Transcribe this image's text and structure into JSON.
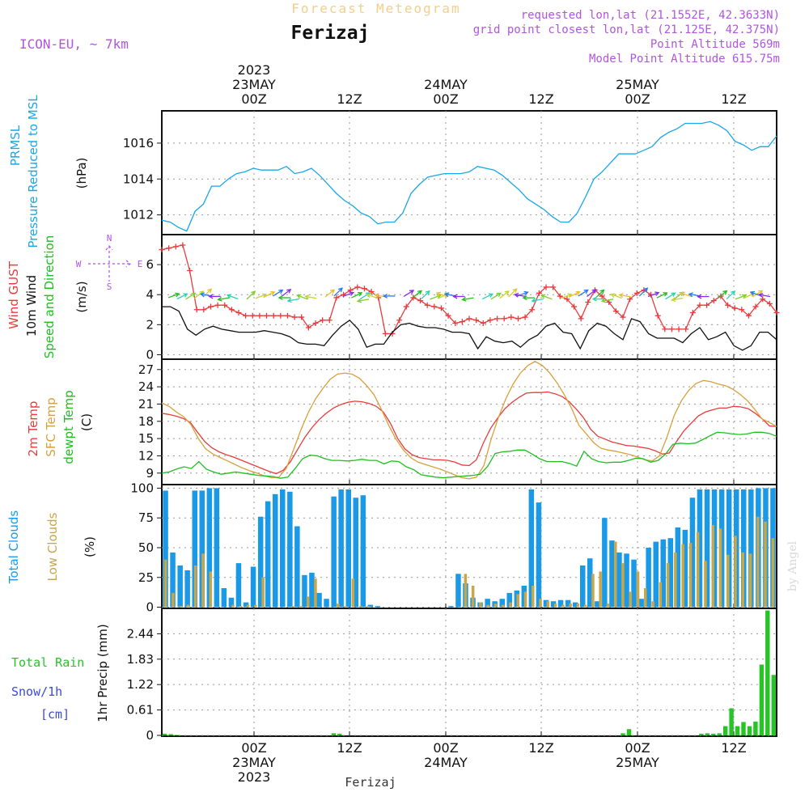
{
  "header": {
    "title": "Forecast Meteogram",
    "location": "Ferizaj",
    "model": "ICON-EU, ~ 7km",
    "requested": "requested lon,lat (21.1552E, 42.3633N)",
    "gridpoint": "grid point closest lon,lat (21.125E, 42.375N)",
    "point_alt": "Point Altitude 569m",
    "model_alt": "Model Point Altitude 615.75m",
    "footer_location": "Ferizaj",
    "watermark": "by Angel"
  },
  "colors": {
    "pressure": "#1aa6e8",
    "gust": "#e83c3c",
    "wind": "#111111",
    "direction": "#1fbf1f",
    "temp": "#e83c3c",
    "sfc": "#d9a03a",
    "dewpt": "#1fbf1f",
    "total_clouds": "#1a9ae6",
    "low_clouds": "#c8a64a",
    "rain": "#26c426",
    "snow": "#3a4ad9",
    "rose": "#b055e0"
  },
  "chart_data": [
    {
      "type": "line",
      "title": "PRMSL",
      "ylabel": "Pressure Reduced to MSL",
      "unit": "(hPa)",
      "ylim": [
        1010.9,
        1017.8
      ],
      "yticks": [
        1012,
        1014,
        1016
      ],
      "ytick_labels": [
        "1012",
        "1014",
        "1016"
      ],
      "grid": true,
      "series": [
        {
          "key": "pressure",
          "values": [
            1011.7,
            1011.6,
            1011.3,
            1011.1,
            1012.2,
            1012.6,
            1013.6,
            1013.6,
            1014.0,
            1014.3,
            1014.4,
            1014.6,
            1014.5,
            1014.5,
            1014.5,
            1014.7,
            1014.3,
            1014.4,
            1014.6,
            1014.2,
            1013.7,
            1013.2,
            1012.8,
            1012.5,
            1012.1,
            1011.9,
            1011.5,
            1011.6,
            1011.6,
            1012.1,
            1013.2,
            1013.7,
            1014.1,
            1014.2,
            1014.3,
            1014.3,
            1014.3,
            1014.4,
            1014.7,
            1014.6,
            1014.5,
            1014.2,
            1013.8,
            1013.4,
            1012.9,
            1012.6,
            1012.3,
            1011.9,
            1011.6,
            1011.6,
            1012.1,
            1013.0,
            1014.0,
            1014.4,
            1014.9,
            1015.4,
            1015.4,
            1015.4,
            1015.6,
            1015.8,
            1016.3,
            1016.6,
            1016.8,
            1017.1,
            1017.1,
            1017.1,
            1017.2,
            1017.0,
            1016.7,
            1016.1,
            1015.9,
            1015.6,
            1015.8,
            1015.8,
            1016.4
          ]
        }
      ]
    },
    {
      "type": "line",
      "title": "Wind GUST",
      "ylabel": "10m Wind Speed and Direction",
      "unit": "(m/s)",
      "ylim": [
        -0.3,
        8.0
      ],
      "yticks": [
        0,
        2,
        4,
        6
      ],
      "ytick_labels": [
        "0",
        "2",
        "4",
        "6"
      ],
      "grid": true,
      "series": [
        {
          "key": "gust",
          "name": "Wind GUST",
          "values": [
            7.0,
            7.1,
            7.2,
            7.3,
            5.6,
            3.0,
            3.0,
            3.2,
            3.3,
            3.3,
            3.0,
            2.8,
            2.6,
            2.6,
            2.6,
            2.6,
            2.6,
            2.6,
            2.6,
            2.5,
            2.5,
            1.8,
            2.1,
            2.3,
            2.3,
            3.8,
            4.0,
            4.3,
            4.5,
            4.4,
            4.2,
            3.8,
            1.4,
            1.4,
            2.3,
            3.2,
            3.8,
            3.6,
            3.3,
            3.2,
            3.1,
            2.6,
            2.1,
            2.2,
            2.4,
            2.3,
            2.1,
            2.3,
            2.4,
            2.4,
            2.5,
            2.4,
            2.5,
            3.0,
            4.1,
            4.5,
            4.5,
            3.9,
            3.7,
            3.2,
            2.4,
            3.5,
            4.3,
            3.9,
            3.5,
            2.9,
            2.5,
            3.7,
            4.1,
            4.3,
            4.0,
            2.6,
            1.7,
            1.7,
            1.7,
            1.7,
            2.8,
            3.3,
            3.3,
            3.6,
            3.9,
            3.3,
            3.1,
            3.0,
            2.6,
            3.2,
            3.7,
            3.4,
            2.8
          ]
        },
        {
          "key": "wind",
          "name": "10m Wind",
          "values": [
            3.2,
            3.2,
            2.9,
            1.7,
            1.3,
            1.7,
            1.9,
            1.7,
            1.6,
            1.5,
            1.5,
            1.5,
            1.6,
            1.5,
            1.4,
            1.2,
            0.8,
            0.7,
            0.7,
            0.6,
            1.3,
            1.9,
            2.3,
            1.7,
            0.5,
            0.7,
            0.7,
            1.5,
            2.0,
            2.1,
            1.9,
            1.8,
            1.8,
            1.7,
            1.5,
            1.5,
            1.4,
            0.4,
            1.2,
            0.9,
            0.8,
            0.9,
            0.5,
            1.0,
            1.3,
            1.9,
            2.1,
            1.5,
            1.4,
            0.4,
            1.6,
            2.1,
            1.9,
            1.4,
            1.0,
            2.4,
            2.2,
            1.4,
            1.1,
            1.1,
            1.1,
            0.8,
            1.4,
            1.8,
            1.0,
            1.2,
            1.5,
            0.6,
            0.3,
            0.6,
            1.5,
            1.5,
            1.0
          ]
        },
        {
          "key": "direction",
          "name": "Speed and Direction",
          "values": []
        }
      ]
    },
    {
      "type": "line",
      "title": "2m Temp",
      "ylabel": "SFC Temp dewpt Temp",
      "unit": "(C)",
      "ylim": [
        7.0,
        28.8
      ],
      "yticks": [
        9,
        12,
        15,
        18,
        21,
        24,
        27
      ],
      "ytick_labels": [
        "9",
        "12",
        "15",
        "18",
        "21",
        "24",
        "27"
      ],
      "grid": true,
      "series": [
        {
          "key": "temp",
          "name": "2m Temp",
          "values": [
            19.4,
            19.2,
            18.9,
            18.5,
            17.8,
            16.1,
            14.5,
            13.4,
            12.7,
            12.2,
            11.8,
            11.3,
            10.8,
            10.3,
            9.8,
            9.3,
            8.9,
            9.5,
            11.0,
            13.1,
            15.2,
            16.9,
            18.3,
            19.4,
            20.3,
            20.9,
            21.3,
            21.5,
            21.4,
            21.1,
            20.6,
            19.6,
            17.6,
            15.0,
            13.2,
            12.2,
            11.7,
            11.5,
            11.3,
            11.3,
            11.2,
            10.9,
            10.4,
            10.3,
            11.3,
            14.3,
            16.8,
            18.6,
            20.2,
            21.3,
            22.2,
            22.9,
            23.0,
            23.0,
            23.1,
            22.8,
            22.3,
            21.4,
            20.1,
            18.6,
            16.6,
            15.4,
            14.9,
            14.4,
            14.1,
            13.8,
            13.7,
            13.5,
            13.3,
            12.9,
            12.3,
            12.5,
            14.5,
            16.3,
            17.6,
            18.9,
            19.6,
            20.0,
            20.3,
            20.3,
            20.6,
            20.5,
            20.2,
            19.4,
            18.4,
            17.2,
            17.1
          ]
        },
        {
          "key": "sfc",
          "name": "SFC Temp",
          "values": [
            21.2,
            20.6,
            19.6,
            18.8,
            17.4,
            15.0,
            13.2,
            12.3,
            11.7,
            11.1,
            10.5,
            9.9,
            9.4,
            9.0,
            8.5,
            8.2,
            8.3,
            9.8,
            13.1,
            16.5,
            19.5,
            21.9,
            23.7,
            25.3,
            26.2,
            26.4,
            26.2,
            25.5,
            24.2,
            22.6,
            20.1,
            17.3,
            14.9,
            13.0,
            11.7,
            10.9,
            10.5,
            10.1,
            9.7,
            9.2,
            8.7,
            8.2,
            8.0,
            8.3,
            10.3,
            14.9,
            18.7,
            21.9,
            24.5,
            26.4,
            27.7,
            28.4,
            27.7,
            26.4,
            24.7,
            22.6,
            20.2,
            17.3,
            15.8,
            14.3,
            13.3,
            13.0,
            12.8,
            12.5,
            12.2,
            11.8,
            11.3,
            11.1,
            12.0,
            15.2,
            19.0,
            21.6,
            23.4,
            24.6,
            25.1,
            24.9,
            24.5,
            24.2,
            23.6,
            22.7,
            21.6,
            20.1,
            18.4,
            17.8,
            17.1
          ]
        },
        {
          "key": "dewpt",
          "name": "dewpt Temp",
          "values": [
            9.0,
            9.2,
            9.7,
            10.1,
            9.8,
            11.0,
            9.7,
            9.2,
            8.8,
            9.0,
            9.2,
            9.0,
            8.8,
            8.6,
            8.5,
            8.4,
            8.1,
            8.3,
            9.8,
            11.5,
            12.1,
            12.0,
            11.5,
            11.2,
            11.2,
            11.1,
            11.2,
            11.4,
            11.2,
            11.2,
            10.6,
            11.1,
            11.0,
            10.1,
            9.6,
            8.7,
            8.5,
            8.3,
            8.2,
            8.3,
            8.4,
            8.5,
            8.6,
            8.8,
            10.2,
            12.4,
            12.7,
            12.8,
            13.0,
            13.0,
            12.3,
            11.5,
            11.0,
            11.0,
            11.0,
            10.7,
            10.2,
            12.8,
            11.5,
            11.0,
            10.8,
            10.9,
            10.9,
            11.2,
            11.6,
            11.5,
            10.9,
            11.2,
            12.3,
            14.0,
            14.2,
            14.1,
            14.2,
            14.8,
            15.5,
            16.1,
            16.0,
            15.8,
            15.7,
            15.8,
            16.1,
            16.1,
            15.9,
            15.4
          ]
        }
      ]
    },
    {
      "type": "bar",
      "title": "Total Clouds",
      "ylabel": "Low Clouds",
      "unit": "(%)",
      "ylim": [
        -1,
        103
      ],
      "yticks": [
        0,
        25,
        50,
        75,
        100
      ],
      "ytick_labels": [
        "0",
        "25",
        "50",
        "75",
        "100"
      ],
      "grid": true,
      "series": [
        {
          "key": "total_clouds",
          "name": "Total Clouds",
          "values": [
            98,
            46,
            35,
            31,
            98,
            98,
            100,
            100,
            16,
            8,
            37,
            4,
            34,
            76,
            89,
            95,
            99,
            97,
            68,
            27,
            29,
            12,
            7,
            93,
            99,
            99,
            92,
            94,
            2,
            1,
            0,
            0,
            0,
            0,
            0,
            0,
            0,
            0,
            0,
            1,
            28,
            20,
            8,
            4,
            7,
            5,
            7,
            12,
            14,
            18,
            99,
            88,
            6,
            5,
            6,
            6,
            4,
            35,
            41,
            5,
            75,
            56,
            46,
            45,
            40,
            7,
            50,
            55,
            57,
            58,
            67,
            65,
            92,
            99,
            99,
            99,
            99,
            99,
            99,
            99,
            99,
            100,
            100,
            100
          ]
        },
        {
          "key": "low_clouds",
          "name": "Low Clouds",
          "values": [
            40,
            12,
            1,
            2,
            35,
            45,
            30,
            0,
            0,
            2,
            1,
            2,
            2,
            25,
            0,
            0,
            0,
            1,
            1,
            9,
            24,
            0,
            0,
            3,
            1,
            24,
            1,
            1,
            0,
            0,
            0,
            0,
            0,
            0,
            0,
            0,
            0,
            0,
            0,
            0,
            28,
            18,
            4,
            2,
            3,
            2,
            4,
            11,
            13,
            18,
            7,
            5,
            3,
            2,
            3,
            3,
            2,
            28,
            30,
            3,
            55,
            37,
            13,
            30,
            16,
            5,
            21,
            37,
            46,
            53,
            54,
            63,
            39,
            69,
            66,
            44,
            60,
            46,
            45,
            76,
            72,
            58
          ]
        }
      ]
    },
    {
      "type": "bar",
      "title": "Total Rain",
      "ylabel": "1hr Precip (mm)",
      "legend_snow": "Snow/1h",
      "legend_unit": "[cm]",
      "ylim": [
        -0.02,
        3.05
      ],
      "yticks": [
        0,
        0.61,
        1.22,
        1.83,
        2.44
      ],
      "ytick_labels": [
        "0",
        "0.61",
        "1.22",
        "1.83",
        "2.44"
      ],
      "grid": true,
      "series": [
        {
          "key": "rain",
          "name": "Total Rain",
          "values": [
            0.04,
            0.03,
            0.01,
            0,
            0,
            0,
            0,
            0,
            0,
            0,
            0,
            0,
            0,
            0,
            0,
            0,
            0,
            0,
            0,
            0,
            0,
            0,
            0,
            0,
            0,
            0,
            0,
            0,
            0.05,
            0.04,
            0,
            0,
            0,
            0,
            0,
            0,
            0,
            0,
            0,
            0,
            0,
            0,
            0,
            0,
            0,
            0,
            0,
            0,
            0,
            0,
            0,
            0,
            0,
            0,
            0,
            0,
            0,
            0,
            0,
            0,
            0,
            0,
            0,
            0,
            0,
            0,
            0,
            0,
            0,
            0,
            0,
            0,
            0,
            0,
            0,
            0,
            0.05,
            0.15,
            0,
            0,
            0,
            0,
            0,
            0,
            0,
            0,
            0,
            0,
            0,
            0.04,
            0.05,
            0.04,
            0.05,
            0.22,
            0.65,
            0.22,
            0.32,
            0.22,
            0.33,
            1.7,
            3.0,
            1.45
          ]
        }
      ]
    }
  ],
  "time_axis": {
    "top": [
      {
        "hour": "00Z",
        "date": "23MAY",
        "year": "2023"
      },
      {
        "hour": "12Z",
        "date": "",
        "year": ""
      },
      {
        "hour": "00Z",
        "date": "24MAY",
        "year": ""
      },
      {
        "hour": "12Z",
        "date": "",
        "year": ""
      },
      {
        "hour": "00Z",
        "date": "25MAY",
        "year": ""
      },
      {
        "hour": "12Z",
        "date": "",
        "year": ""
      }
    ],
    "bottom": [
      {
        "hour": "00Z",
        "date": "23MAY",
        "year": "2023"
      },
      {
        "hour": "12Z",
        "date": "",
        "year": ""
      },
      {
        "hour": "00Z",
        "date": "24MAY",
        "year": ""
      },
      {
        "hour": "12Z",
        "date": "",
        "year": ""
      },
      {
        "hour": "00Z",
        "date": "25MAY",
        "year": ""
      },
      {
        "hour": "12Z",
        "date": "",
        "year": ""
      }
    ]
  },
  "rose": {
    "n": "N",
    "s": "S",
    "w": "W",
    "e": "E"
  }
}
